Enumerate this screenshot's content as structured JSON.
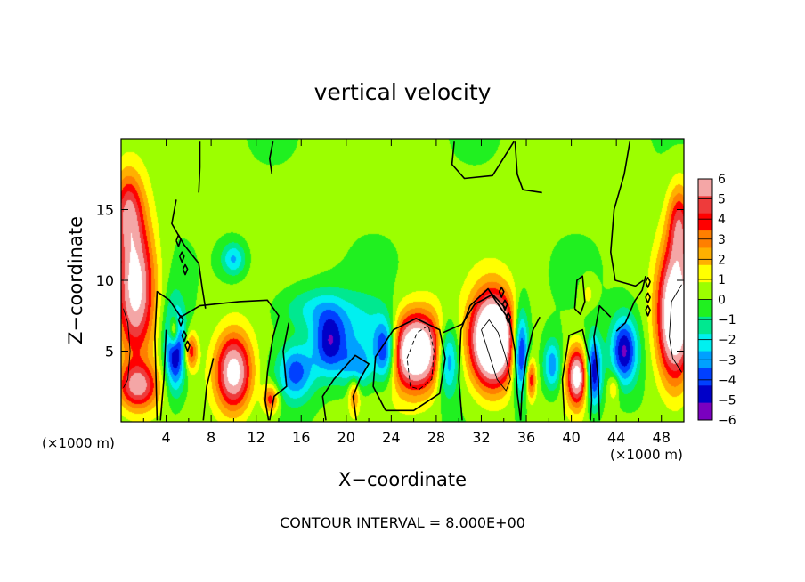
{
  "chart_data": {
    "type": "heatmap",
    "title": "vertical velocity",
    "xlabel": "X−coordinate",
    "ylabel": "Z−coordinate",
    "x_unit_left": "(×1000 m)",
    "x_unit_right": "(×1000 m)",
    "footer": "CONTOUR INTERVAL = 8.000E+00",
    "xlim": [
      0,
      50
    ],
    "ylim": [
      0,
      20
    ],
    "xticks": [
      4,
      8,
      12,
      16,
      20,
      24,
      28,
      32,
      36,
      40,
      44,
      48
    ],
    "xtick_labels": [
      "4",
      "8",
      "12",
      "16",
      "20",
      "24",
      "28",
      "32",
      "36",
      "40",
      "44",
      "48"
    ],
    "yticks": [
      5,
      10,
      15
    ],
    "ytick_labels": [
      "5",
      "10",
      "15"
    ],
    "colorbar": {
      "range": [
        -6,
        6
      ],
      "ticks": [
        6,
        5,
        4,
        3,
        2,
        1,
        0,
        -1,
        -2,
        -3,
        -4,
        -5,
        -6
      ],
      "tick_labels": [
        "6",
        "5",
        "4",
        "3",
        "2",
        "1",
        "0",
        "−1",
        "−2",
        "−3",
        "−4",
        "−5",
        "−6"
      ],
      "colors": [
        "#f4a6a6",
        "#ee3b3b",
        "#ff0000",
        "#ff7f00",
        "#ffb000",
        "#ffff00",
        "#9cff00",
        "#20f020",
        "#00e890",
        "#00f0f0",
        "#00a0ff",
        "#0040ff",
        "#0000c8",
        "#7a00c0"
      ]
    },
    "features": [
      {
        "kind": "updraft",
        "x": 1.3,
        "z": 9.5,
        "w": 7,
        "sx": 1.7,
        "sz": 4.8
      },
      {
        "kind": "updraft",
        "x": 0.6,
        "z": 15,
        "w": 4,
        "sx": 1.3,
        "sz": 2.8
      },
      {
        "kind": "updraft",
        "x": 1.5,
        "z": 2.5,
        "w": 5,
        "sx": 1.8,
        "sz": 1.6
      },
      {
        "kind": "downdraft",
        "x": 4.8,
        "z": 5.2,
        "w": -6,
        "sx": 0.9,
        "sz": 3.0
      },
      {
        "kind": "updraft",
        "x": 4.7,
        "z": 6.4,
        "w": 5,
        "sx": 0.45,
        "sz": 1.2
      },
      {
        "kind": "updraft",
        "x": 6.2,
        "z": 5.0,
        "w": 4,
        "sx": 0.6,
        "sz": 1.3
      },
      {
        "kind": "updraft",
        "x": 10,
        "z": 3.5,
        "w": 7,
        "sx": 1.6,
        "sz": 2.7
      },
      {
        "kind": "updraft",
        "x": 13.3,
        "z": 1.6,
        "w": 4,
        "sx": 0.7,
        "sz": 1.0
      },
      {
        "kind": "downdraft",
        "x": 10,
        "z": 11.5,
        "w": -3,
        "sx": 1.1,
        "sz": 1.2
      },
      {
        "kind": "downdraft",
        "x": 15.5,
        "z": 3.5,
        "w": -4,
        "sx": 1.6,
        "sz": 2.0
      },
      {
        "kind": "downdraft",
        "x": 18.5,
        "z": 5.5,
        "w": -4.5,
        "sx": 1.5,
        "sz": 2.3
      },
      {
        "kind": "downdraft",
        "x": 21,
        "z": 3.8,
        "w": -3,
        "sx": 1.4,
        "sz": 1.6
      },
      {
        "kind": "downdraft",
        "x": 17,
        "z": 8.0,
        "w": -2,
        "sx": 3.0,
        "sz": 1.6
      },
      {
        "kind": "downdraft",
        "x": 21.5,
        "z": 6.5,
        "w": -2,
        "sx": 3.0,
        "sz": 2.5
      },
      {
        "kind": "updraft",
        "x": 20.7,
        "z": 2.0,
        "w": 3,
        "sx": 0.5,
        "sz": 1.3
      },
      {
        "kind": "updraft",
        "x": 26.2,
        "z": 5.0,
        "w": 9,
        "sx": 2.4,
        "sz": 2.7
      },
      {
        "kind": "downdraft",
        "x": 23.5,
        "z": 5.0,
        "w": -5.5,
        "sx": 1.0,
        "sz": 2.2
      },
      {
        "kind": "downdraft",
        "x": 29,
        "z": 4.5,
        "w": -5,
        "sx": 1.0,
        "sz": 2.5
      },
      {
        "kind": "updraft",
        "x": 33,
        "z": 5.8,
        "w": 11,
        "sx": 1.9,
        "sz": 3.2
      },
      {
        "kind": "downdraft",
        "x": 35.5,
        "z": 5.0,
        "w": -6,
        "sx": 0.7,
        "sz": 3.0
      },
      {
        "kind": "updraft",
        "x": 36.4,
        "z": 3.0,
        "w": 4,
        "sx": 0.45,
        "sz": 1.4
      },
      {
        "kind": "downdraft",
        "x": 38.3,
        "z": 4.0,
        "w": -3.5,
        "sx": 0.8,
        "sz": 1.8
      },
      {
        "kind": "updraft",
        "x": 40.5,
        "z": 3.2,
        "w": 7,
        "sx": 0.9,
        "sz": 2.0
      },
      {
        "kind": "downdraft",
        "x": 42,
        "z": 3.5,
        "w": -5.5,
        "sx": 0.7,
        "sz": 2.5
      },
      {
        "kind": "downdraft",
        "x": 44.7,
        "z": 5.0,
        "w": -5.5,
        "sx": 1.2,
        "sz": 2.4
      },
      {
        "kind": "updraft",
        "x": 43.8,
        "z": 2.5,
        "w": 2,
        "sx": 0.5,
        "sz": 1.0
      },
      {
        "kind": "updraft",
        "x": 49.2,
        "z": 7.5,
        "w": 9,
        "sx": 1.5,
        "sz": 4.5
      },
      {
        "kind": "updraft",
        "x": 49.6,
        "z": 14,
        "w": 4,
        "sx": 1.0,
        "sz": 2.8
      },
      {
        "kind": "updraft",
        "x": 41.5,
        "z": 9.0,
        "w": 1.2,
        "sx": 0.6,
        "sz": 1.0
      }
    ],
    "contours": [
      {
        "style": "solid",
        "points": [
          [
            3.2,
            0.1
          ],
          [
            3.1,
            3.0
          ],
          [
            3.0,
            6.0
          ],
          [
            3.2,
            9.2
          ],
          [
            4.3,
            8.6
          ],
          [
            5.3,
            7.4
          ],
          [
            7.0,
            8.2
          ],
          [
            10.5,
            8.5
          ],
          [
            13.0,
            8.6
          ],
          [
            14.0,
            7.5
          ],
          [
            13.5,
            6.0
          ],
          [
            13.0,
            3.5
          ],
          [
            12.8,
            1.5
          ],
          [
            13.1,
            0.1
          ]
        ]
      },
      {
        "style": "solid",
        "points": [
          [
            4.9,
            15.7
          ],
          [
            4.5,
            14.0
          ],
          [
            5.6,
            12.5
          ],
          [
            6.9,
            11.2
          ],
          [
            7.2,
            9.5
          ],
          [
            7.5,
            8.0
          ]
        ]
      },
      {
        "style": "solid",
        "points": [
          [
            3.5,
            0.1
          ],
          [
            3.8,
            3.0
          ],
          [
            4.0,
            6.5
          ]
        ]
      },
      {
        "style": "solid",
        "points": [
          [
            7.3,
            0.1
          ],
          [
            7.6,
            2.5
          ],
          [
            8.2,
            4.5
          ]
        ]
      },
      {
        "style": "solid",
        "points": [
          [
            7.0,
            19.8
          ],
          [
            7.0,
            18.0
          ],
          [
            6.9,
            16.2
          ]
        ]
      },
      {
        "style": "solid",
        "points": [
          [
            13.5,
            19.8
          ],
          [
            13.2,
            18.6
          ],
          [
            13.4,
            17.5
          ]
        ]
      },
      {
        "style": "solid",
        "points": [
          [
            13.2,
            0.1
          ],
          [
            13.6,
            1.8
          ],
          [
            14.7,
            2.5
          ],
          [
            14.4,
            5.0
          ],
          [
            14.9,
            7.0
          ]
        ]
      },
      {
        "style": "solid",
        "points": [
          [
            18.2,
            0.1
          ],
          [
            17.9,
            1.8
          ],
          [
            18.9,
            3.0
          ],
          [
            20.8,
            4.7
          ],
          [
            22.0,
            4.1
          ],
          [
            21.2,
            3.0
          ],
          [
            20.6,
            1.8
          ],
          [
            20.9,
            0.1
          ]
        ]
      },
      {
        "style": "solid",
        "points": [
          [
            23.5,
            0.8
          ],
          [
            22.4,
            2.5
          ],
          [
            22.6,
            4.6
          ],
          [
            24.2,
            6.5
          ],
          [
            26.2,
            7.3
          ],
          [
            28.3,
            6.5
          ],
          [
            28.8,
            4.5
          ],
          [
            28.3,
            2.0
          ],
          [
            26.0,
            0.8
          ],
          [
            23.5,
            0.8
          ]
        ]
      },
      {
        "style": "solid",
        "points": [
          [
            30.3,
            0.1
          ],
          [
            30.0,
            3.0
          ],
          [
            30.2,
            6.5
          ],
          [
            31.0,
            8.2
          ],
          [
            32.6,
            9.4
          ],
          [
            33.4,
            8.4
          ],
          [
            34.5,
            7.2
          ],
          [
            35.0,
            5.0
          ],
          [
            35.2,
            2.0
          ],
          [
            35.5,
            0.1
          ]
        ]
      },
      {
        "style": "solid",
        "points": [
          [
            35.5,
            0.1
          ],
          [
            35.6,
            2.0
          ],
          [
            36.0,
            4.5
          ],
          [
            36.6,
            6.5
          ],
          [
            37.2,
            7.4
          ]
        ]
      },
      {
        "style": "solid",
        "points": [
          [
            39.4,
            0.1
          ],
          [
            39.2,
            3.0
          ],
          [
            39.8,
            6.1
          ],
          [
            41.0,
            6.5
          ],
          [
            41.7,
            4.0
          ],
          [
            41.8,
            1.5
          ],
          [
            41.7,
            0.1
          ]
        ]
      },
      {
        "style": "solid",
        "points": [
          [
            42.5,
            0.1
          ],
          [
            42.4,
            3.0
          ],
          [
            42.0,
            6.0
          ],
          [
            42.5,
            8.2
          ],
          [
            43.5,
            7.4
          ]
        ]
      },
      {
        "style": "solid",
        "points": [
          [
            40.3,
            8.0
          ],
          [
            40.5,
            10.0
          ],
          [
            41.0,
            10.3
          ],
          [
            41.2,
            8.5
          ],
          [
            40.8,
            7.6
          ],
          [
            40.3,
            8.0
          ]
        ]
      },
      {
        "style": "solid",
        "points": [
          [
            44.0,
            6.4
          ],
          [
            44.8,
            7.0
          ],
          [
            45.6,
            8.5
          ],
          [
            46.3,
            9.3
          ],
          [
            46.6,
            10.3
          ]
        ]
      },
      {
        "style": "solid",
        "points": [
          [
            45.2,
            19.8
          ],
          [
            44.7,
            17.5
          ],
          [
            43.8,
            15.0
          ],
          [
            43.5,
            12.0
          ],
          [
            43.9,
            10.0
          ],
          [
            45.7,
            9.6
          ],
          [
            46.4,
            10.0
          ]
        ]
      },
      {
        "style": "solid",
        "points": [
          [
            35.0,
            19.8
          ],
          [
            35.2,
            17.5
          ],
          [
            35.7,
            16.4
          ],
          [
            37.4,
            16.2
          ]
        ]
      },
      {
        "style": "solid",
        "points": [
          [
            34.9,
            19.8
          ],
          [
            33.0,
            17.4
          ],
          [
            30.5,
            17.2
          ],
          [
            29.4,
            18.2
          ],
          [
            29.6,
            19.8
          ]
        ]
      },
      {
        "style": "solid",
        "points": [
          [
            28.6,
            6.3
          ],
          [
            30.3,
            6.9
          ],
          [
            31.4,
            8.3
          ],
          [
            33.0,
            9.0
          ],
          [
            34.2,
            8.0
          ]
        ]
      },
      {
        "style": "solid",
        "points": [
          [
            4.9,
            12.8
          ],
          [
            5.1,
            13.2
          ],
          [
            5.3,
            12.9
          ],
          [
            5.1,
            12.4
          ],
          [
            4.9,
            12.8
          ]
        ]
      },
      {
        "style": "solid",
        "points": [
          [
            5.2,
            11.7
          ],
          [
            5.4,
            12.0
          ],
          [
            5.6,
            11.7
          ],
          [
            5.4,
            11.3
          ],
          [
            5.2,
            11.7
          ]
        ]
      },
      {
        "style": "solid",
        "points": [
          [
            5.5,
            10.8
          ],
          [
            5.7,
            11.1
          ],
          [
            5.9,
            10.8
          ],
          [
            5.7,
            10.4
          ],
          [
            5.5,
            10.8
          ]
        ]
      },
      {
        "style": "solid",
        "points": [
          [
            5.1,
            7.2
          ],
          [
            5.3,
            7.5
          ],
          [
            5.5,
            7.2
          ],
          [
            5.3,
            6.8
          ],
          [
            5.1,
            7.2
          ]
        ]
      },
      {
        "style": "solid",
        "points": [
          [
            5.4,
            6.1
          ],
          [
            5.6,
            6.4
          ],
          [
            5.8,
            6.1
          ],
          [
            5.6,
            5.7
          ],
          [
            5.4,
            6.1
          ]
        ]
      },
      {
        "style": "solid",
        "points": [
          [
            5.7,
            5.4
          ],
          [
            5.9,
            5.7
          ],
          [
            6.1,
            5.4
          ],
          [
            5.9,
            5.0
          ],
          [
            5.7,
            5.4
          ]
        ]
      },
      {
        "style": "solid",
        "points": [
          [
            33.6,
            9.2
          ],
          [
            33.8,
            9.5
          ],
          [
            34.0,
            9.2
          ],
          [
            33.8,
            8.8
          ],
          [
            33.6,
            9.2
          ]
        ]
      },
      {
        "style": "solid",
        "points": [
          [
            33.9,
            8.3
          ],
          [
            34.1,
            8.6
          ],
          [
            34.3,
            8.3
          ],
          [
            34.1,
            7.9
          ],
          [
            33.9,
            8.3
          ]
        ]
      },
      {
        "style": "solid",
        "points": [
          [
            34.2,
            7.4
          ],
          [
            34.4,
            7.7
          ],
          [
            34.6,
            7.4
          ],
          [
            34.4,
            7.0
          ],
          [
            34.2,
            7.4
          ]
        ]
      },
      {
        "style": "solid",
        "points": [
          [
            46.6,
            9.9
          ],
          [
            46.8,
            10.2
          ],
          [
            47.0,
            9.9
          ],
          [
            46.8,
            9.5
          ],
          [
            46.6,
            9.9
          ]
        ]
      },
      {
        "style": "solid",
        "points": [
          [
            46.6,
            8.8
          ],
          [
            46.8,
            9.1
          ],
          [
            47.0,
            8.8
          ],
          [
            46.8,
            8.4
          ],
          [
            46.6,
            8.8
          ]
        ]
      },
      {
        "style": "solid",
        "points": [
          [
            46.6,
            7.9
          ],
          [
            46.8,
            8.2
          ],
          [
            47.0,
            7.9
          ],
          [
            46.8,
            7.5
          ],
          [
            46.6,
            7.9
          ]
        ]
      },
      {
        "style": "dashed",
        "points": [
          [
            25.7,
            2.5
          ],
          [
            25.4,
            4.5
          ],
          [
            26.3,
            6.3
          ],
          [
            27.3,
            6.8
          ],
          [
            27.8,
            5.0
          ],
          [
            27.6,
            3.0
          ],
          [
            26.5,
            2.3
          ],
          [
            25.7,
            2.5
          ]
        ]
      },
      {
        "style": "thin",
        "points": [
          [
            32.0,
            6.5
          ],
          [
            32.7,
            7.2
          ],
          [
            33.5,
            6.3
          ],
          [
            34.2,
            4.5
          ],
          [
            34.6,
            3.0
          ],
          [
            34.2,
            2.2
          ],
          [
            33.4,
            3.0
          ],
          [
            32.8,
            4.5
          ],
          [
            32.0,
            6.5
          ]
        ]
      },
      {
        "style": "thin",
        "points": [
          [
            0.2,
            8.0
          ],
          [
            0.6,
            7.0
          ],
          [
            0.8,
            5.0
          ],
          [
            0.6,
            3.0
          ],
          [
            0.2,
            2.4
          ]
        ]
      },
      {
        "style": "thin",
        "points": [
          [
            49.8,
            9.7
          ],
          [
            48.9,
            8.5
          ],
          [
            48.7,
            6.0
          ],
          [
            49.0,
            4.5
          ],
          [
            49.8,
            3.5
          ]
        ]
      }
    ]
  }
}
